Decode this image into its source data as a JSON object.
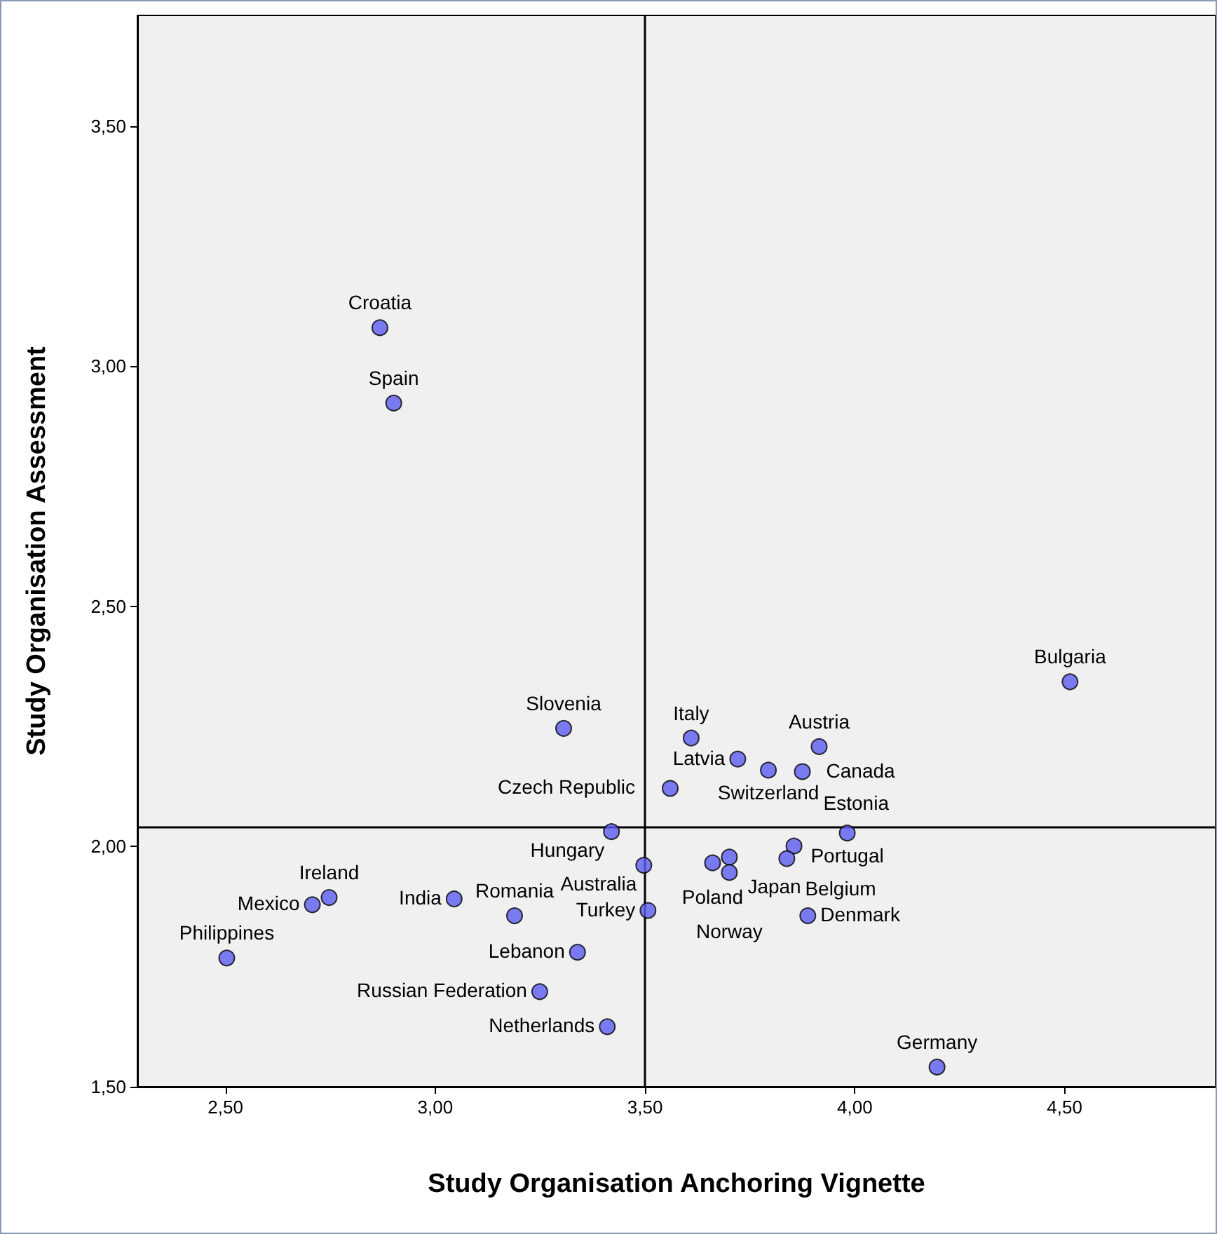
{
  "chart_data": {
    "type": "scatter",
    "xlabel": "Study Organisation Anchoring Vignette",
    "ylabel": "Study Organisation Assessment",
    "x": [
      2.868,
      2.901,
      4.513,
      3.306,
      3.61,
      3.721,
      3.915,
      3.794,
      3.875,
      3.56,
      3.982,
      3.42,
      3.497,
      3.661,
      3.701,
      3.701,
      3.855,
      3.838,
      3.888,
      3.507,
      3.339,
      3.249,
      3.41,
      3.189,
      3.045,
      2.747,
      2.707,
      2.503,
      4.196
    ],
    "series": [
      {
        "color": "#5c5cf0",
        "values": [
          3.08,
          2.923,
          2.343,
          2.246,
          2.226,
          2.182,
          2.208,
          2.159,
          2.156,
          2.121,
          2.028,
          2.031,
          1.961,
          1.966,
          1.978,
          1.946,
          2.001,
          1.975,
          1.856,
          1.867,
          1.78,
          1.698,
          1.625,
          1.856,
          1.891,
          1.894,
          1.879,
          1.768,
          1.541
        ]
      }
    ],
    "annotations": [
      {
        "text": "Croatia",
        "x": 2.868,
        "y": 3.08
      },
      {
        "text": "Spain",
        "x": 2.901,
        "y": 2.923
      },
      {
        "text": "Bulgaria",
        "x": 4.513,
        "y": 2.343
      },
      {
        "text": "Slovenia",
        "x": 3.306,
        "y": 2.246
      },
      {
        "text": "Italy",
        "x": 3.61,
        "y": 2.226
      },
      {
        "text": "Latvia",
        "x": 3.721,
        "y": 2.182
      },
      {
        "text": "Austria",
        "x": 3.915,
        "y": 2.208
      },
      {
        "text": "Switzerland",
        "x": 3.794,
        "y": 2.159
      },
      {
        "text": "Canada",
        "x": 3.875,
        "y": 2.156
      },
      {
        "text": "Czech Republic",
        "x": 3.56,
        "y": 2.121
      },
      {
        "text": "Portugal",
        "x": 3.982,
        "y": 2.028
      },
      {
        "text": "Hungary",
        "x": 3.42,
        "y": 2.031
      },
      {
        "text": "Australia",
        "x": 3.497,
        "y": 1.961
      },
      {
        "text": "Poland",
        "x": 3.661,
        "y": 1.966
      },
      {
        "text": "Japan",
        "x": 3.701,
        "y": 1.978
      },
      {
        "text": "Norway",
        "x": 3.701,
        "y": 1.946
      },
      {
        "text": "Estonia",
        "x": 3.855,
        "y": 2.001
      },
      {
        "text": "Belgium",
        "x": 3.838,
        "y": 1.975
      },
      {
        "text": "Denmark",
        "x": 3.888,
        "y": 1.856
      },
      {
        "text": "Turkey",
        "x": 3.507,
        "y": 1.867
      },
      {
        "text": "Lebanon",
        "x": 3.339,
        "y": 1.78
      },
      {
        "text": "Russian Federation",
        "x": 3.249,
        "y": 1.698
      },
      {
        "text": "Netherlands",
        "x": 3.41,
        "y": 1.625
      },
      {
        "text": "Romania",
        "x": 3.189,
        "y": 1.856
      },
      {
        "text": "India",
        "x": 3.045,
        "y": 1.891
      },
      {
        "text": "Ireland",
        "x": 2.747,
        "y": 1.894
      },
      {
        "text": "Mexico",
        "x": 2.707,
        "y": 1.879
      },
      {
        "text": "Philippines",
        "x": 2.503,
        "y": 1.768
      },
      {
        "text": "Germany",
        "x": 4.196,
        "y": 1.541
      }
    ],
    "xlim": [
      2.29,
      4.86
    ],
    "ylim": [
      1.5,
      3.73
    ],
    "xticks": [
      {
        "value": 2.5,
        "label": "2,50"
      },
      {
        "value": 3.0,
        "label": "3,00"
      },
      {
        "value": 3.5,
        "label": "3,50"
      },
      {
        "value": 4.0,
        "label": "4,00"
      },
      {
        "value": 4.5,
        "label": "4,50"
      }
    ],
    "yticks": [
      {
        "value": 1.5,
        "label": "1,50"
      },
      {
        "value": 2.0,
        "label": "2,00"
      },
      {
        "value": 2.5,
        "label": "2,50"
      },
      {
        "value": 3.0,
        "label": "3,00"
      },
      {
        "value": 3.5,
        "label": "3,50"
      }
    ],
    "ref_lines": [
      {
        "axis": "x",
        "value": 3.5,
        "color": "#000000"
      },
      {
        "axis": "y",
        "value": 2.04,
        "color": "#000000"
      }
    ],
    "marker": "circle",
    "grid": false
  }
}
